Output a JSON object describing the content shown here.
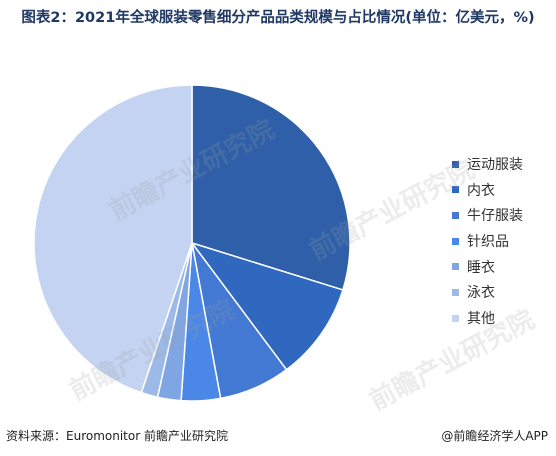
{
  "chart_data": {
    "type": "pie",
    "title": "图表2：2021年全球服装零售细分产品品类规模与占比情况(单位：亿美元，%)",
    "categories": [
      "运动服装",
      "内衣",
      "牛仔服装",
      "针织品",
      "睡衣",
      "泳衣",
      "其他"
    ],
    "values": [
      29.8,
      10.0,
      7.3,
      4.0,
      2.4,
      1.7,
      44.8
    ],
    "colors": [
      "#2e5fa8",
      "#3168bf",
      "#4379d2",
      "#4b87e6",
      "#7fa6e3",
      "#9db9e8",
      "#c3d3f1"
    ],
    "start_angle_deg": 0,
    "direction": "clockwise",
    "legend_position": "right"
  },
  "source_text": "资料来源：Euromonitor 前瞻产业研究院",
  "credit_text": "@前瞻经济学人APP",
  "watermark_text": "前瞻产业研究院"
}
